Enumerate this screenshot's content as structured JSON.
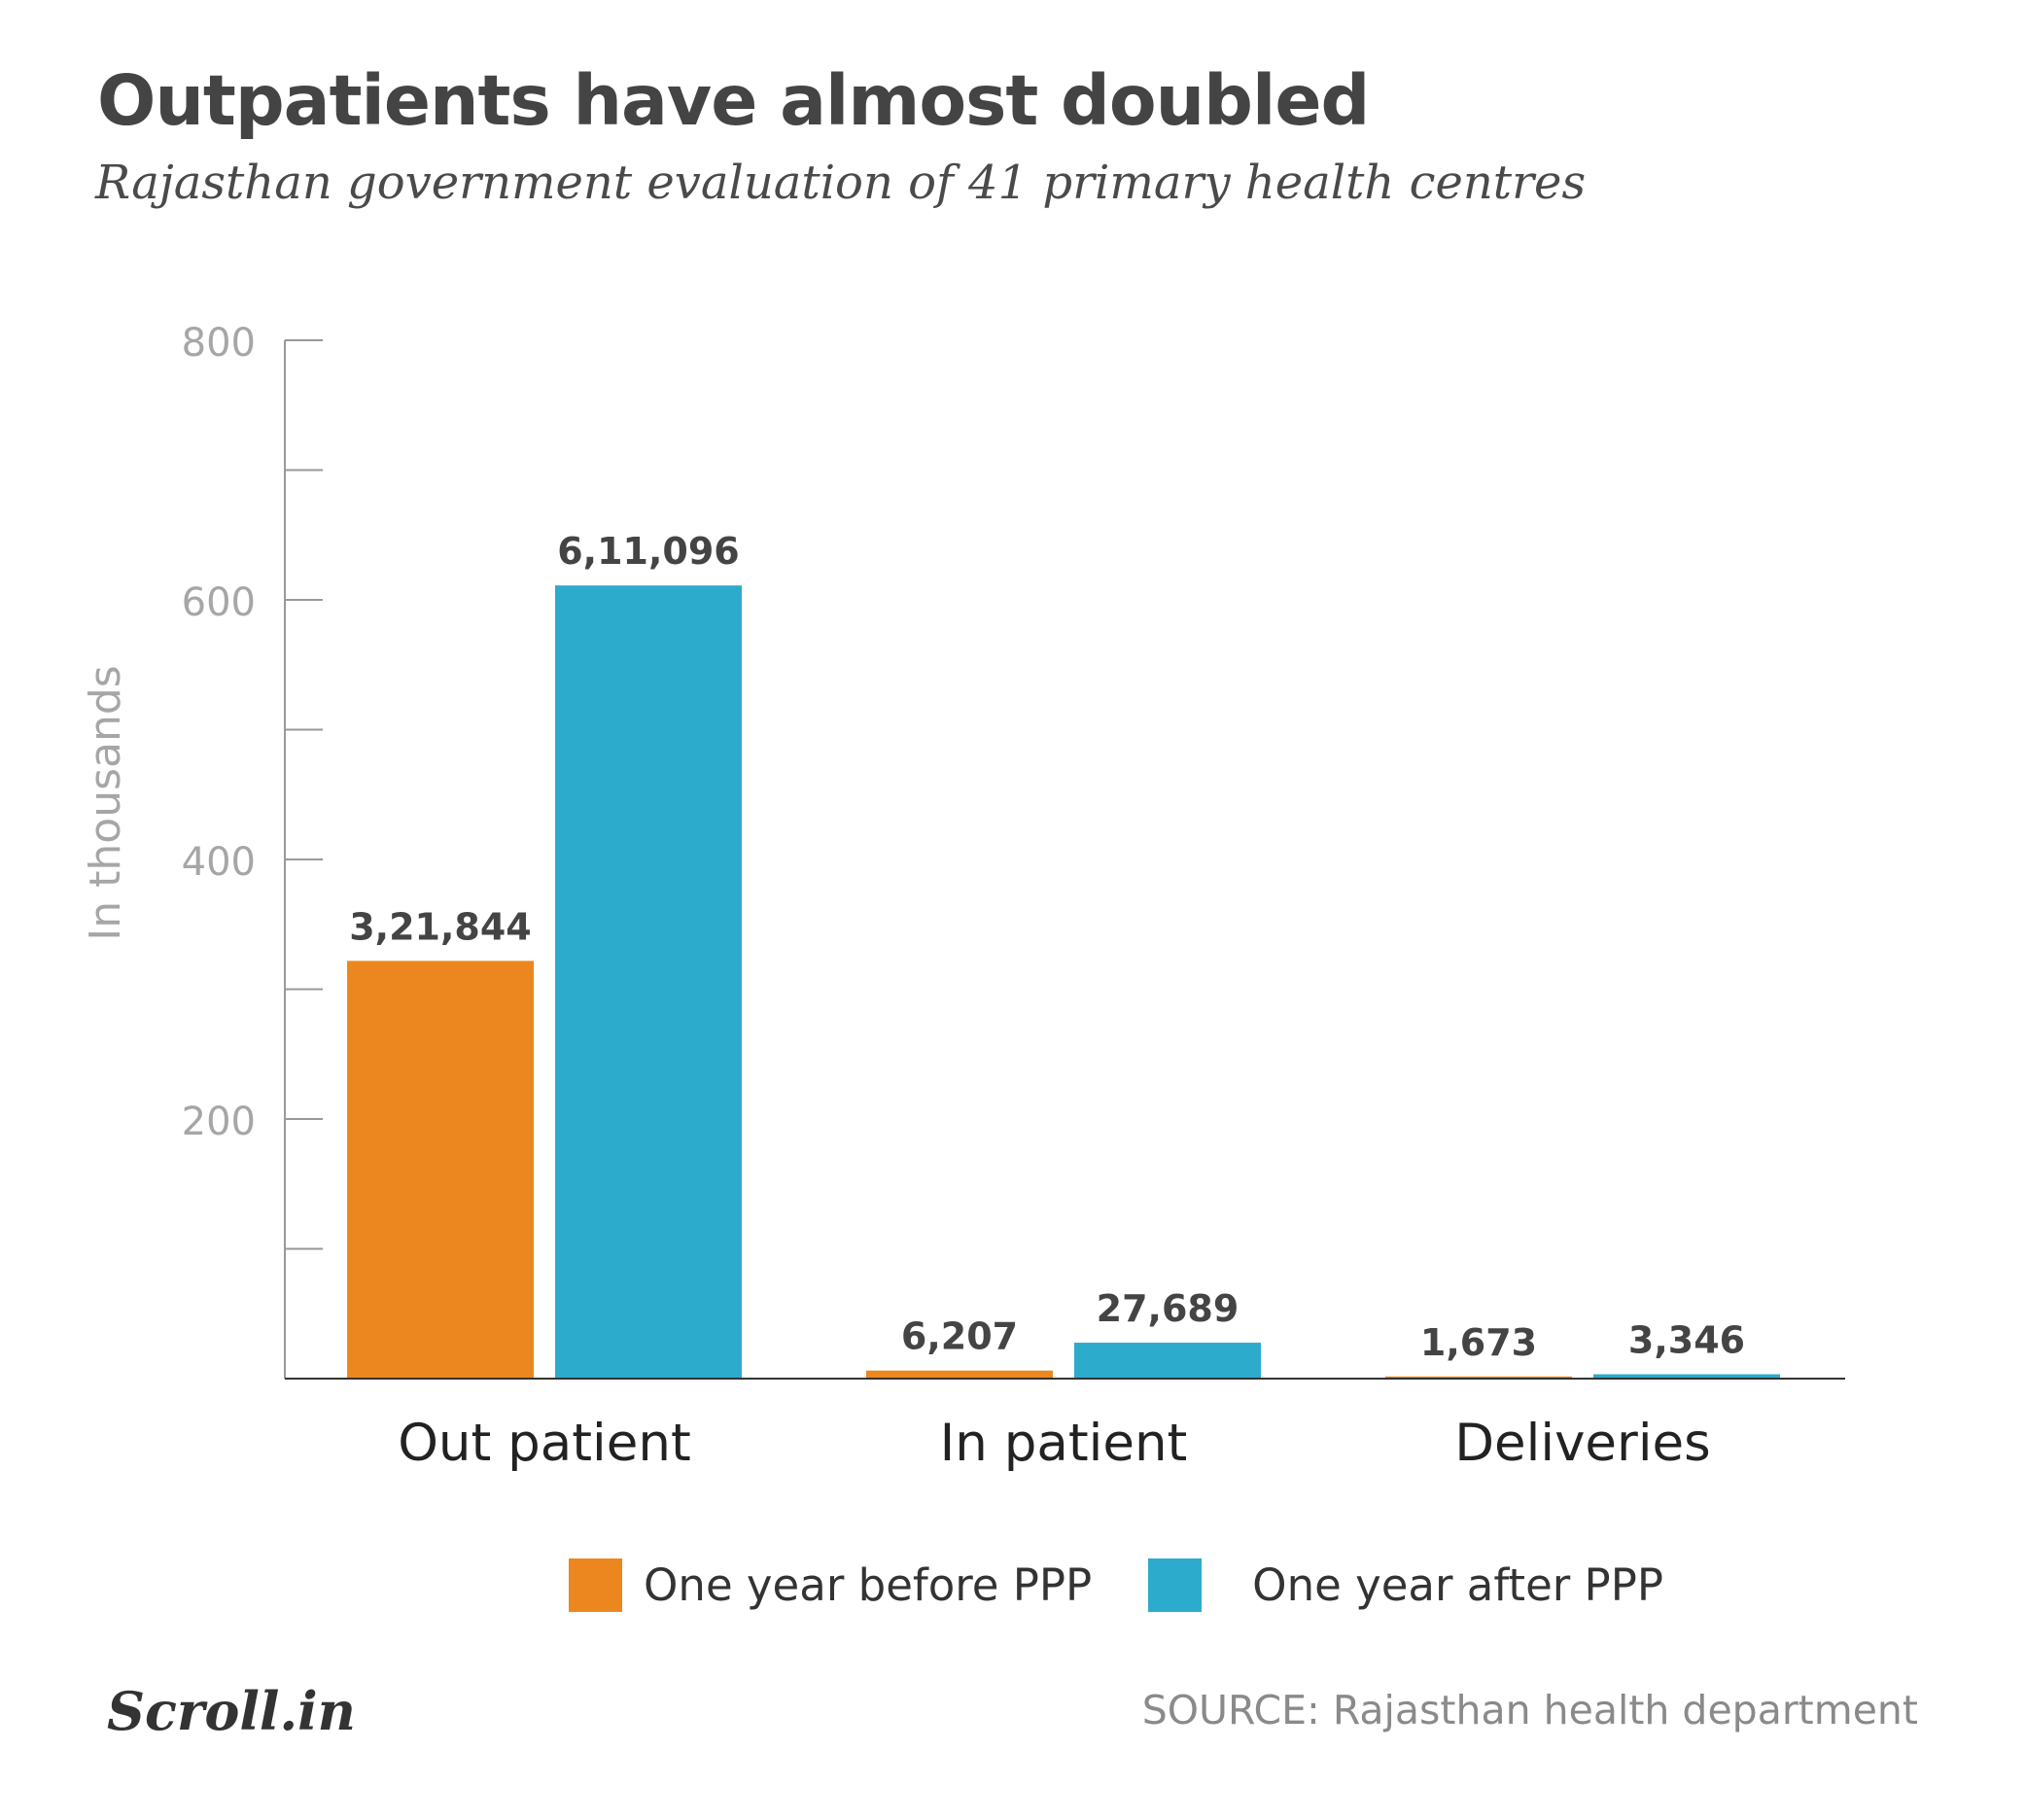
{
  "header": {
    "title": "Outpatients have almost doubled",
    "subtitle": "Rajasthan government evaluation of 41 primary health centres"
  },
  "chart_data": {
    "type": "bar",
    "categories": [
      "Out patient",
      "In patient",
      "Deliveries"
    ],
    "series": [
      {
        "name": "One year before PPP",
        "color": "#EC871F",
        "values": [
          321.844,
          6.207,
          1.673
        ],
        "labels": [
          "3,21,844",
          "6,207",
          "1,673"
        ]
      },
      {
        "name": "One year after PPP",
        "color": "#2DABCC",
        "values": [
          611.096,
          27.689,
          3.346
        ],
        "labels": [
          "6,11,096",
          "27,689",
          "3,346"
        ]
      }
    ],
    "ylabel": "In thousands",
    "ylim": [
      0,
      800
    ],
    "yticks": [
      200,
      400,
      600,
      800
    ],
    "grid": false,
    "legend_position": "bottom-center"
  },
  "footer": {
    "logo": "Scroll.in",
    "source": "SOURCE: Rajasthan health department"
  }
}
